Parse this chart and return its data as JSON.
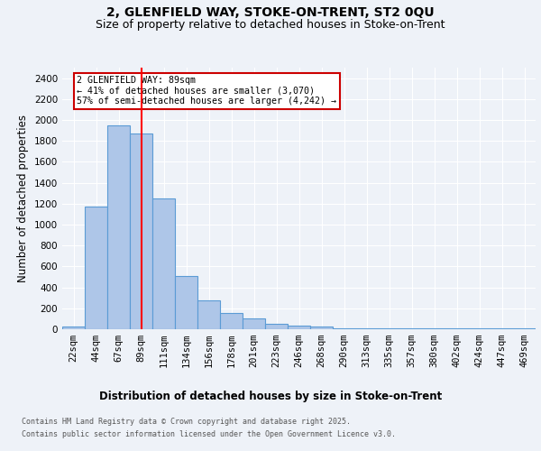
{
  "title_line1": "2, GLENFIELD WAY, STOKE-ON-TRENT, ST2 0QU",
  "title_line2": "Size of property relative to detached houses in Stoke-on-Trent",
  "xlabel": "Distribution of detached houses by size in Stoke-on-Trent",
  "ylabel": "Number of detached properties",
  "categories": [
    "22sqm",
    "44sqm",
    "67sqm",
    "89sqm",
    "111sqm",
    "134sqm",
    "156sqm",
    "178sqm",
    "201sqm",
    "223sqm",
    "246sqm",
    "268sqm",
    "290sqm",
    "313sqm",
    "335sqm",
    "357sqm",
    "380sqm",
    "402sqm",
    "424sqm",
    "447sqm",
    "469sqm"
  ],
  "values": [
    25,
    1175,
    1950,
    1875,
    1250,
    510,
    275,
    155,
    100,
    55,
    35,
    25,
    10,
    10,
    10,
    5,
    5,
    5,
    5,
    5,
    5
  ],
  "bar_color": "#aec6e8",
  "bar_edge_color": "#5b9bd5",
  "red_line_index": 3,
  "annotation_text": "2 GLENFIELD WAY: 89sqm\n← 41% of detached houses are smaller (3,070)\n57% of semi-detached houses are larger (4,242) →",
  "annotation_box_color": "#ffffff",
  "annotation_box_edge": "#cc0000",
  "footnote1": "Contains HM Land Registry data © Crown copyright and database right 2025.",
  "footnote2": "Contains public sector information licensed under the Open Government Licence v3.0.",
  "ylim": [
    0,
    2500
  ],
  "yticks": [
    0,
    200,
    400,
    600,
    800,
    1000,
    1200,
    1400,
    1600,
    1800,
    2000,
    2200,
    2400
  ],
  "bg_color": "#eef2f8",
  "grid_color": "#ffffff",
  "title_fontsize": 10,
  "subtitle_fontsize": 9,
  "axis_label_fontsize": 8.5,
  "tick_fontsize": 7.5
}
